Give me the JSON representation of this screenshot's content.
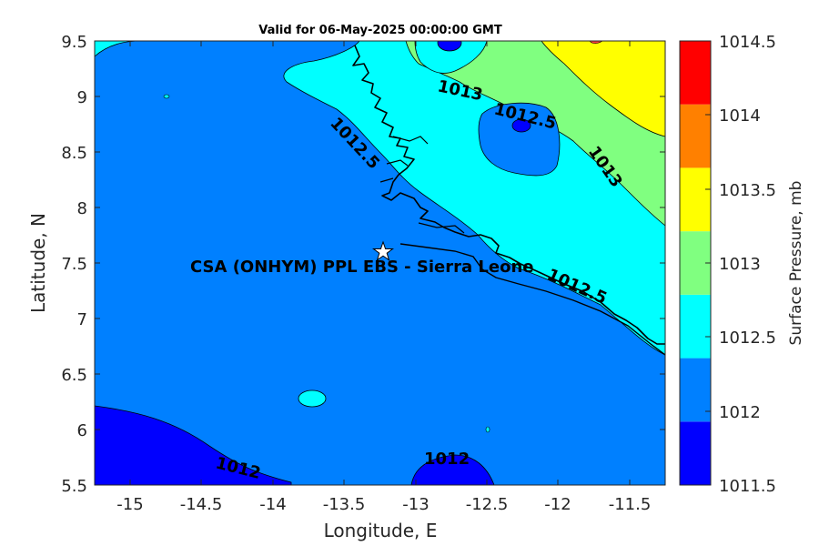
{
  "title": "Valid for 06-May-2025 00:00:00 GMT",
  "site_label": "CSA (ONHYM) PPL EBS  - Sierra Leone",
  "x_axis": {
    "label": "Longitude, E",
    "ticks": [
      "-15",
      "-14.5",
      "-14",
      "-13.5",
      "-13",
      "-12.5",
      "-12",
      "-11.5"
    ]
  },
  "y_axis": {
    "label": "Latitude, N",
    "ticks": [
      "9.5",
      "9",
      "8.5",
      "8",
      "7.5",
      "7",
      "6.5",
      "6",
      "5.5"
    ]
  },
  "colorbar": {
    "label": "Surface Pressure, mb",
    "ticks": [
      "1014.5",
      "1014",
      "1013.5",
      "1013",
      "1012.5",
      "1012",
      "1011.5"
    ],
    "colors": [
      "#0000ff",
      "#0080ff",
      "#00ffff",
      "#80ff80",
      "#ffff00",
      "#ff8000",
      "#ff0000"
    ]
  },
  "contour_labels": [
    {
      "text": "1013"
    },
    {
      "text": "1012.5"
    },
    {
      "text": "1012.5"
    },
    {
      "text": "1013"
    },
    {
      "text": "1012.5"
    },
    {
      "text": "1012"
    },
    {
      "text": "1012"
    }
  ],
  "chart_data": {
    "type": "heatmap",
    "title": "Valid for 06-May-2025 00:00:00 GMT",
    "xlabel": "Longitude, E",
    "ylabel": "Latitude, N",
    "xlim": [
      -15.25,
      -11.25
    ],
    "ylim": [
      5.5,
      9.5
    ],
    "colorbar_label": "Surface Pressure, mb",
    "colorbar_range": [
      1011.5,
      1014.5
    ],
    "contour_levels": [
      1012,
      1012.5,
      1013
    ],
    "site": {
      "name": "CSA (ONHYM) PPL EBS  - Sierra Leone",
      "lon": -13.23,
      "lat": 7.6
    }
  }
}
